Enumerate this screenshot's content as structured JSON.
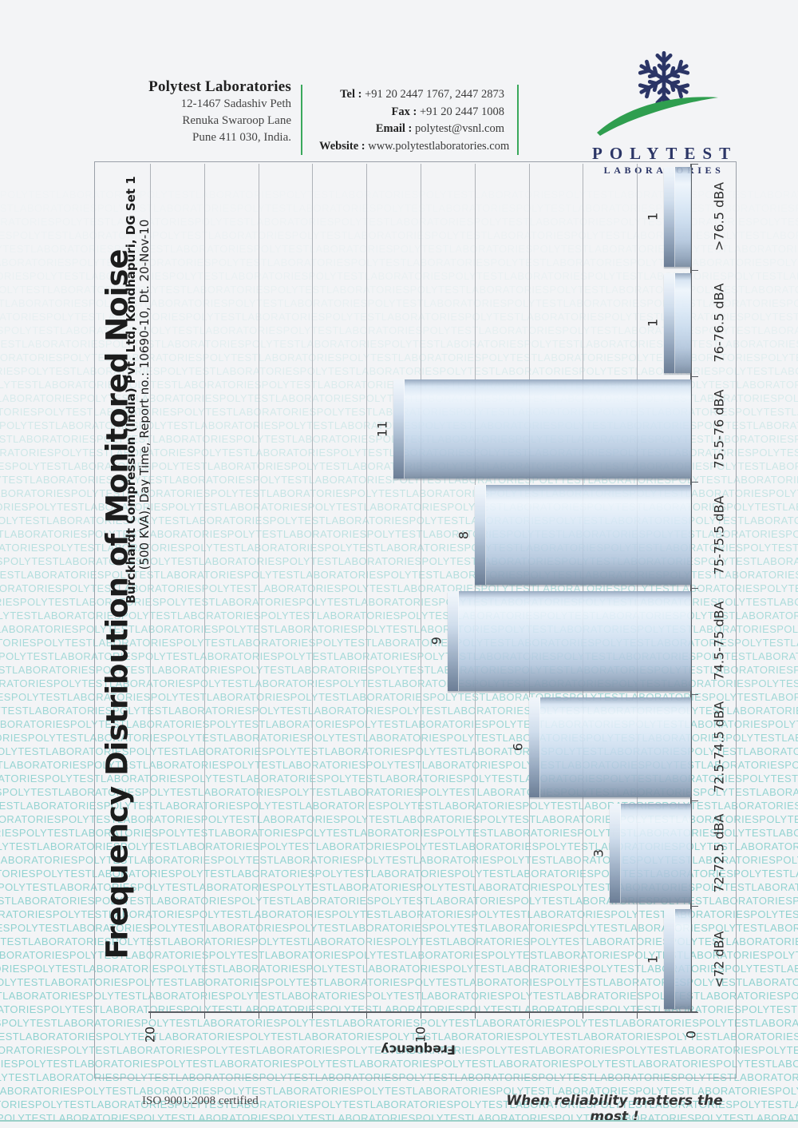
{
  "header": {
    "company_name": "Polytest Laboratories",
    "address_lines": [
      "12-1467 Sadashiv Peth",
      "Renuka Swaroop Lane",
      "Pune 411 030, India."
    ],
    "contact": [
      {
        "label": "Tel :",
        "value": "+91 20 2447 1767,  2447 2873"
      },
      {
        "label": "Fax :",
        "value": "+91 20 2447 1008"
      },
      {
        "label": "Email :",
        "value": "polytest@vsnl.com"
      },
      {
        "label": "Website :",
        "value": "www.polytestlaboratories.com"
      }
    ],
    "logo": {
      "icon": "snowflake-icon",
      "wordmark_line1": "POLYTEST",
      "wordmark_line2": "LABORATORIES",
      "navy": "#2b3566",
      "green": "#2f9e4f"
    }
  },
  "chart_data": {
    "type": "bar",
    "title": "Frequency Distribution of Monitored Noise",
    "subtitle1": "Burckhardt Compression (India) Pvt. Ltd, Kondhapuri, DG Set 1",
    "subtitle2": "(500 KVA), Day Time, Report no.: 10690-10, Dt. 20-Nov-10",
    "categories": [
      "<72 dBA",
      "72-72.5 dBA",
      "72.5-74.5 dBA",
      "74.5-75 dBA",
      "75-75.5 dBA",
      "75.5-76 dBA",
      "76-76.5 dBA",
      ">76.5 dBA"
    ],
    "values": [
      1,
      3,
      6,
      9,
      8,
      11,
      1,
      1
    ],
    "ylabel": "Frequency",
    "ylim": [
      0,
      20
    ],
    "yticks": [
      0,
      10,
      20
    ],
    "gridline_step": 2,
    "orientation": "page rotated 90deg (bars horizontal, category axis on right)",
    "bar_color": "#bcd2ea",
    "grid": true,
    "legend": "none"
  },
  "watermark": {
    "text": "POLYTESTLABORATORIES"
  },
  "footer": {
    "left": "ISO 9001:2008 certified",
    "right": "When reliability matters the most !"
  }
}
